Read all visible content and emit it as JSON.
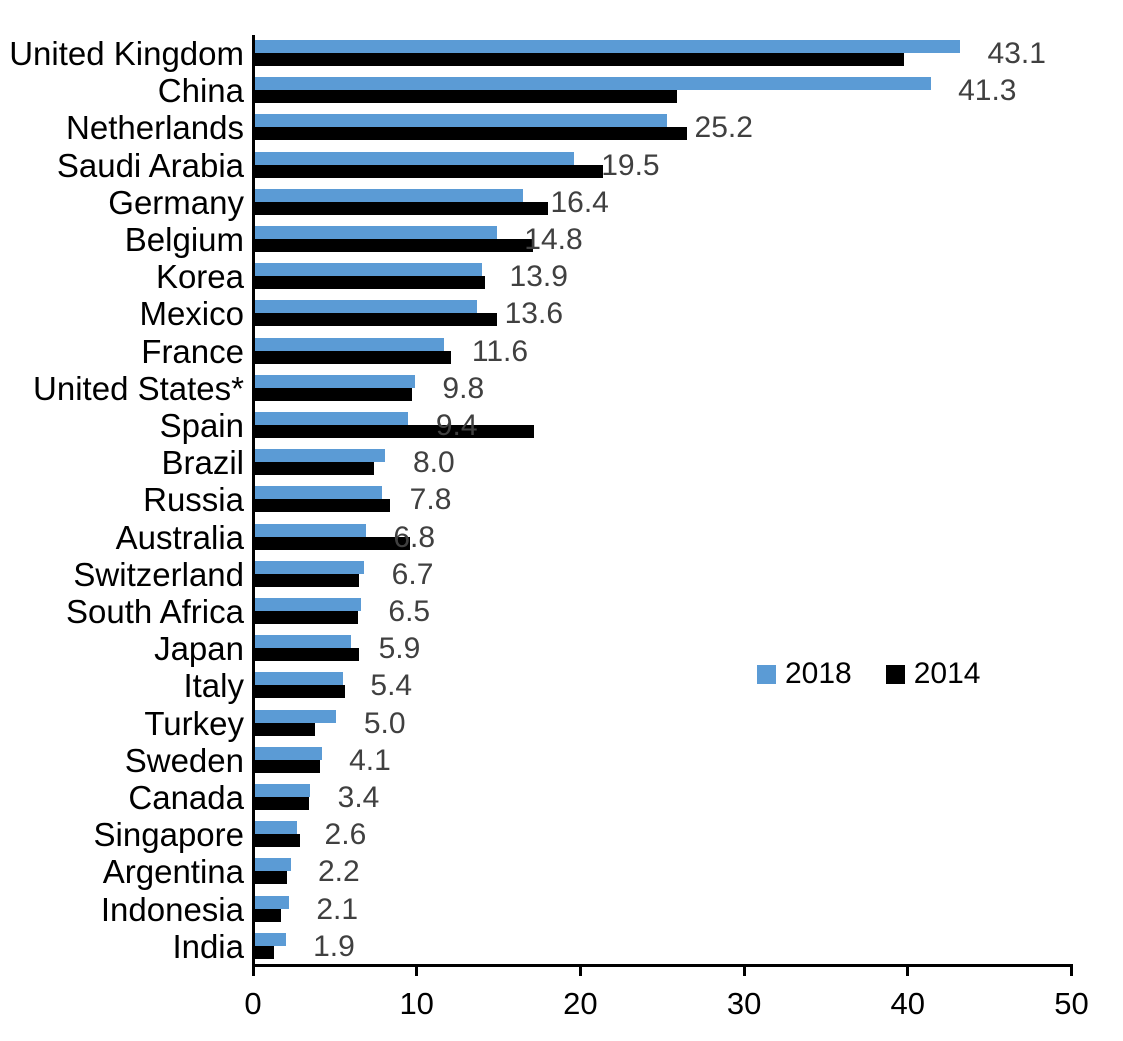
{
  "chart_data": {
    "type": "bar",
    "orientation": "horizontal",
    "title": "",
    "xlabel": "",
    "ylabel": "",
    "xlim": [
      0,
      50
    ],
    "x_ticks": [
      0,
      10,
      20,
      30,
      40,
      50
    ],
    "x_tick_labels": [
      "0",
      "10",
      "20",
      "30",
      "40",
      "50"
    ],
    "grid": false,
    "categories": [
      "United Kingdom",
      "China",
      "Netherlands",
      "Saudi Arabia",
      "Germany",
      "Belgium",
      "Korea",
      "Mexico",
      "France",
      "United States*",
      "Spain",
      "Brazil",
      "Russia",
      "Australia",
      "Switzerland",
      "South Africa",
      "Japan",
      "Italy",
      "Turkey",
      "Sweden",
      "Canada",
      "Singapore",
      "Argentina",
      "Indonesia",
      "India"
    ],
    "series": [
      {
        "name": "2018",
        "color": "#5b9bd5",
        "values": [
          43.1,
          41.3,
          25.2,
          19.5,
          16.4,
          14.8,
          13.9,
          13.6,
          11.6,
          9.8,
          9.4,
          8.0,
          7.8,
          6.8,
          6.7,
          6.5,
          5.9,
          5.4,
          5.0,
          4.1,
          3.4,
          2.6,
          2.2,
          2.1,
          1.9
        ],
        "data_labels": [
          "43.1",
          "41.3",
          "25.2",
          "19.5",
          "16.4",
          "14.8",
          "13.9",
          "13.6",
          "11.6",
          "9.8",
          "9.4",
          "8.0",
          "7.8",
          "6.8",
          "6.7",
          "6.5",
          "5.9",
          "5.4",
          "5.0",
          "4.1",
          "3.4",
          "2.6",
          "2.2",
          "2.1",
          "1.9"
        ]
      },
      {
        "name": "2014",
        "color": "#000000",
        "values": [
          39.7,
          25.8,
          26.4,
          21.3,
          17.9,
          17.0,
          14.1,
          14.8,
          12.0,
          9.6,
          17.1,
          7.3,
          8.3,
          9.5,
          6.4,
          6.3,
          6.4,
          5.5,
          3.7,
          4.0,
          3.3,
          2.8,
          2.0,
          1.6,
          1.2
        ],
        "data_labels": []
      }
    ],
    "legend": {
      "position": "middle-right",
      "entries": [
        "2018",
        "2014"
      ]
    },
    "value_label_color": "#404040",
    "axis_color": "#000000"
  }
}
